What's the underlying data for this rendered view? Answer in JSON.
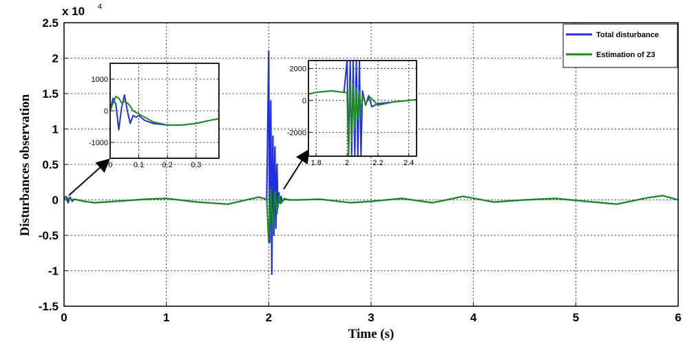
{
  "chart_data": {
    "type": "line",
    "xlabel": "Time (s)",
    "ylabel": "Disturbances observation",
    "y_exponent_label": "x 10",
    "y_exponent": "4",
    "xlim": [
      0,
      6
    ],
    "ylim": [
      -1.5,
      2.5
    ],
    "xticks": [
      "0",
      "1",
      "2",
      "3",
      "4",
      "5",
      "6"
    ],
    "yticks": [
      "2.5",
      "2",
      "1.5",
      "1",
      "0.5",
      "0",
      "-0.5",
      "-1",
      "-1.5"
    ],
    "grid": true,
    "legend_position": "top-right",
    "series": [
      {
        "name": "Total disturbance",
        "color": "#1f2fe0",
        "x": [
          0,
          0.02,
          0.04,
          0.06,
          0.08,
          0.1,
          0.2,
          0.3,
          0.5,
          0.8,
          1.0,
          1.3,
          1.6,
          1.9,
          1.98,
          2.0,
          2.01,
          2.02,
          2.03,
          2.04,
          2.05,
          2.06,
          2.07,
          2.08,
          2.09,
          2.1,
          2.11,
          2.12,
          2.13,
          2.15,
          2.2,
          2.3,
          2.5,
          2.8,
          3.0,
          3.3,
          3.6,
          3.9,
          4.2,
          4.5,
          4.8,
          5.1,
          5.4,
          5.7,
          5.85,
          6.0
        ],
        "values": [
          0.02,
          0.05,
          -0.04,
          0.04,
          -0.02,
          0.01,
          -0.02,
          -0.04,
          -0.02,
          0.01,
          0.02,
          -0.03,
          -0.06,
          0.04,
          0.01,
          2.1,
          -0.6,
          1.4,
          -1.05,
          0.9,
          -0.5,
          0.75,
          -0.4,
          0.5,
          -0.1,
          0.1,
          -0.05,
          0.05,
          -0.03,
          0.01,
          0.0,
          0.0,
          0.01,
          -0.04,
          -0.02,
          0.02,
          -0.04,
          0.05,
          -0.03,
          0.0,
          0.02,
          -0.02,
          -0.06,
          0.03,
          0.06,
          0.0
        ]
      },
      {
        "name": "Estimation of Z3",
        "color": "#1e8a1e",
        "x": [
          0,
          0.02,
          0.04,
          0.06,
          0.08,
          0.1,
          0.2,
          0.3,
          0.5,
          0.8,
          1.0,
          1.3,
          1.6,
          1.9,
          1.98,
          2.0,
          2.02,
          2.04,
          2.06,
          2.08,
          2.1,
          2.12,
          2.15,
          2.2,
          2.3,
          2.5,
          2.8,
          3.0,
          3.3,
          3.6,
          3.9,
          4.2,
          4.5,
          4.8,
          5.1,
          5.4,
          5.7,
          5.85,
          6.0
        ],
        "values": [
          0.01,
          0.04,
          0.02,
          0.03,
          0.0,
          0.01,
          -0.02,
          -0.04,
          -0.02,
          0.01,
          0.02,
          -0.03,
          -0.06,
          0.04,
          0.01,
          -0.6,
          0.15,
          -0.45,
          0.12,
          -0.2,
          0.06,
          -0.05,
          0.02,
          0.0,
          0.0,
          0.01,
          -0.04,
          -0.02,
          0.02,
          -0.04,
          0.05,
          -0.03,
          0.0,
          0.02,
          -0.02,
          -0.06,
          0.03,
          0.06,
          0.0
        ]
      }
    ],
    "insets": [
      {
        "name": "inset-1",
        "xlim": [
          0,
          0.38
        ],
        "ylim": [
          -1500,
          1500
        ],
        "xticks": [
          "0",
          "0.1",
          "0.2",
          "0.3"
        ],
        "yticks": [
          "1000",
          "0",
          "-1000"
        ],
        "series": [
          {
            "name": "Total disturbance",
            "x": [
              0,
              0.01,
              0.02,
              0.03,
              0.04,
              0.05,
              0.06,
              0.07,
              0.08,
              0.09,
              0.1,
              0.12,
              0.15,
              0.2,
              0.25,
              0.3,
              0.35,
              0.38
            ],
            "values": [
              0,
              400,
              200,
              -600,
              100,
              500,
              0,
              -400,
              -150,
              -200,
              -150,
              -300,
              -400,
              -450,
              -450,
              -400,
              -300,
              -250
            ]
          },
          {
            "name": "Estimation of Z3",
            "x": [
              0,
              0.01,
              0.02,
              0.03,
              0.04,
              0.05,
              0.06,
              0.07,
              0.08,
              0.1,
              0.12,
              0.15,
              0.2,
              0.25,
              0.3,
              0.35,
              0.38
            ],
            "values": [
              0,
              250,
              450,
              400,
              250,
              300,
              250,
              150,
              0,
              -100,
              -200,
              -350,
              -450,
              -450,
              -400,
              -300,
              -250
            ]
          }
        ]
      },
      {
        "name": "inset-2",
        "xlim": [
          1.75,
          2.45
        ],
        "ylim": [
          -3500,
          2500
        ],
        "xticks": [
          "1.8",
          "2",
          "2.2",
          "2.4"
        ],
        "yticks": [
          "2000",
          "0",
          "-2000"
        ],
        "series": [
          {
            "name": "Total disturbance",
            "x": [
              1.75,
              1.8,
              1.9,
              1.98,
              2.0,
              2.01,
              2.02,
              2.03,
              2.04,
              2.05,
              2.06,
              2.07,
              2.08,
              2.09,
              2.1,
              2.12,
              2.14,
              2.16,
              2.2,
              2.3,
              2.4,
              2.45
            ],
            "values": [
              400,
              500,
              600,
              500,
              2500,
              -3500,
              2500,
              -3500,
              2500,
              -3500,
              2500,
              -3500,
              2500,
              -3500,
              600,
              -300,
              300,
              -400,
              -200,
              -100,
              0,
              50
            ]
          },
          {
            "name": "Estimation of Z3",
            "x": [
              1.75,
              1.8,
              1.9,
              1.98,
              2.0,
              2.01,
              2.02,
              2.03,
              2.04,
              2.05,
              2.06,
              2.07,
              2.08,
              2.09,
              2.1,
              2.12,
              2.15,
              2.2,
              2.3,
              2.4,
              2.45
            ],
            "values": [
              400,
              500,
              600,
              500,
              500,
              -3500,
              1200,
              -2600,
              1000,
              -1800,
              800,
              -1200,
              600,
              -800,
              300,
              -200,
              200,
              -300,
              -100,
              0,
              50
            ]
          }
        ]
      }
    ]
  }
}
